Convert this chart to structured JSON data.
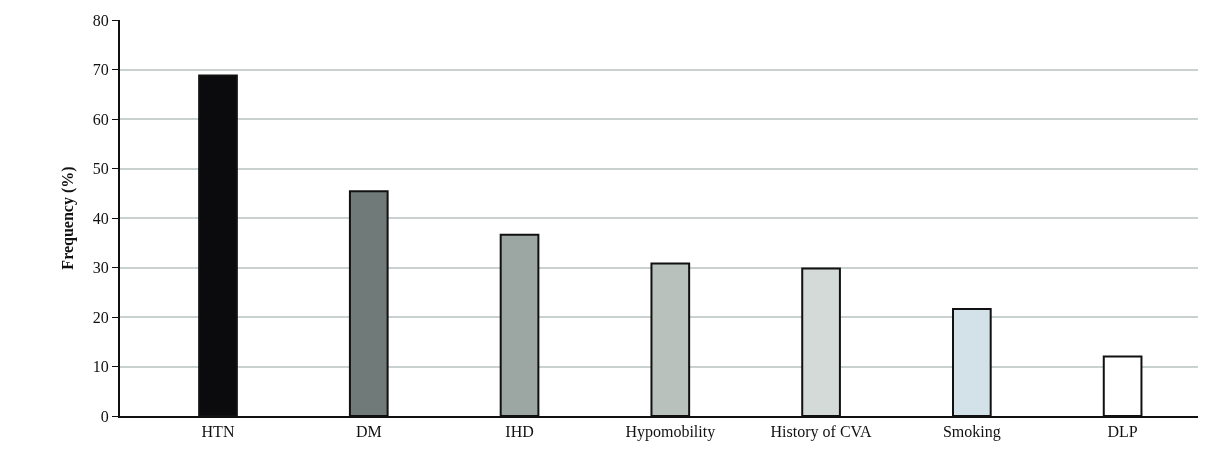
{
  "chart_data": {
    "type": "bar",
    "ylabel": "Frequency (%)",
    "categories": [
      "HTN",
      "DM",
      "IHD",
      "Hypomobility",
      "History of CVA",
      "Smoking",
      "DLP"
    ],
    "values": [
      68.8,
      45.4,
      36.6,
      30.8,
      29.8,
      21.6,
      12
    ],
    "colors": [
      "#0b0b0d",
      "#6f7a79",
      "#9ca7a3",
      "#b9c1bd",
      "#d4dad7",
      "#d3e1e8",
      "#ffffff"
    ],
    "ylim": [
      0,
      80
    ],
    "yticks": [
      0,
      10,
      20,
      30,
      40,
      50,
      60,
      70,
      80
    ],
    "grid": "y"
  }
}
